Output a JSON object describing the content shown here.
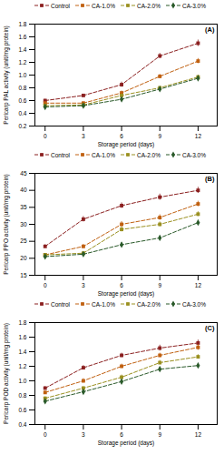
{
  "chart_data": [
    {
      "type": "line",
      "title": "(A)",
      "xlabel": "Storage period (days)",
      "ylabel": "Pericarp PAL activity (unit/mg protein)",
      "x": [
        0,
        3,
        6,
        9,
        12
      ],
      "xlim": [
        -0.8,
        13.5
      ],
      "xticks": [
        0,
        3,
        6,
        9,
        12
      ],
      "ylim": [
        0.2,
        1.8
      ],
      "yticks": [
        0.2,
        0.4,
        0.6,
        0.8,
        {
          "value": 1.0,
          "label": "1.0"
        },
        1.2,
        1.4,
        1.6,
        1.8
      ],
      "series": [
        {
          "name": "Control",
          "color": "#8B2020",
          "marker": "square",
          "line_style": "dashed",
          "values": [
            0.6,
            0.68,
            0.85,
            1.3,
            1.5
          ],
          "yerr": [
            0.02,
            0.02,
            0.04,
            0.04,
            0.05
          ]
        },
        {
          "name": "CA-1.0%",
          "color": "#C06010",
          "marker": "square",
          "line_style": "dashed",
          "values": [
            0.56,
            0.56,
            0.72,
            0.98,
            1.22
          ],
          "yerr": [
            0.02,
            0.02,
            0.03,
            0.03,
            0.04
          ]
        },
        {
          "name": "CA-2.0%",
          "color": "#9A9020",
          "marker": "square",
          "line_style": "dashed",
          "values": [
            0.52,
            0.53,
            0.68,
            0.8,
            0.97
          ],
          "yerr": [
            0.02,
            0.02,
            0.02,
            0.02,
            0.03
          ]
        },
        {
          "name": "CA-3.0%",
          "color": "#2A5A2A",
          "marker": "diamond",
          "line_style": "dashed",
          "values": [
            0.5,
            0.52,
            0.62,
            0.78,
            0.95
          ],
          "yerr": [
            0.02,
            0.02,
            0.02,
            0.02,
            0.03
          ]
        }
      ]
    },
    {
      "type": "line",
      "title": "(B)",
      "xlabel": "Storage period (days)",
      "ylabel": "Pericarp PPO activity (unit/mg protein)",
      "x": [
        0,
        3,
        6,
        9,
        12
      ],
      "xlim": [
        -0.8,
        13.5
      ],
      "xticks": [
        0,
        3,
        6,
        9,
        12
      ],
      "ylim": [
        15,
        45
      ],
      "yticks": [
        15,
        20,
        25,
        30,
        35,
        40,
        45
      ],
      "series": [
        {
          "name": "Control",
          "color": "#8B2020",
          "marker": "square",
          "line_style": "dashed",
          "values": [
            23.5,
            31.5,
            35.5,
            38.0,
            40.0
          ],
          "yerr": [
            0.5,
            0.8,
            0.8,
            0.9,
            0.9
          ]
        },
        {
          "name": "CA-1.0%",
          "color": "#C06010",
          "marker": "square",
          "line_style": "dashed",
          "values": [
            21.0,
            23.5,
            30.0,
            32.0,
            36.0
          ],
          "yerr": [
            0.4,
            0.6,
            0.8,
            0.8,
            0.8
          ]
        },
        {
          "name": "CA-2.0%",
          "color": "#9A9020",
          "marker": "square",
          "line_style": "dashed",
          "values": [
            21.0,
            21.5,
            28.5,
            30.0,
            33.0
          ],
          "yerr": [
            0.4,
            0.5,
            0.7,
            0.7,
            0.7
          ]
        },
        {
          "name": "CA-3.0%",
          "color": "#2A5A2A",
          "marker": "diamond",
          "line_style": "dashed",
          "values": [
            20.5,
            21.2,
            24.0,
            26.0,
            30.5
          ],
          "yerr": [
            0.4,
            0.4,
            0.6,
            0.6,
            0.7
          ]
        }
      ]
    },
    {
      "type": "line",
      "title": "(C)",
      "xlabel": "Storage period (days)",
      "ylabel": "Pericarp POD activity (unit/mg protein)",
      "x": [
        0,
        3,
        6,
        9,
        12
      ],
      "xlim": [
        -0.8,
        13.5
      ],
      "xticks": [
        0,
        3,
        6,
        9,
        12
      ],
      "ylim": [
        0.4,
        1.8
      ],
      "yticks": [
        0.4,
        0.6,
        0.8,
        {
          "value": 1.0,
          "label": "1.0"
        },
        1.2,
        1.4,
        1.6,
        1.8
      ],
      "series": [
        {
          "name": "Control",
          "color": "#8B2020",
          "marker": "square",
          "line_style": "dashed",
          "values": [
            0.9,
            1.18,
            1.35,
            1.45,
            1.52
          ],
          "yerr": [
            0.02,
            0.03,
            0.03,
            0.04,
            0.04
          ]
        },
        {
          "name": "CA-1.0%",
          "color": "#C06010",
          "marker": "square",
          "line_style": "dashed",
          "values": [
            0.84,
            1.0,
            1.2,
            1.35,
            1.46
          ],
          "yerr": [
            0.02,
            0.03,
            0.03,
            0.03,
            0.04
          ]
        },
        {
          "name": "CA-2.0%",
          "color": "#9A9020",
          "marker": "square",
          "line_style": "dashed",
          "values": [
            0.76,
            0.9,
            1.05,
            1.25,
            1.33
          ],
          "yerr": [
            0.02,
            0.02,
            0.03,
            0.03,
            0.03
          ]
        },
        {
          "name": "CA-3.0%",
          "color": "#2A5A2A",
          "marker": "diamond",
          "line_style": "dashed",
          "values": [
            0.72,
            0.85,
            0.99,
            1.16,
            1.21
          ],
          "yerr": [
            0.02,
            0.02,
            0.03,
            0.03,
            0.03
          ]
        }
      ]
    }
  ]
}
